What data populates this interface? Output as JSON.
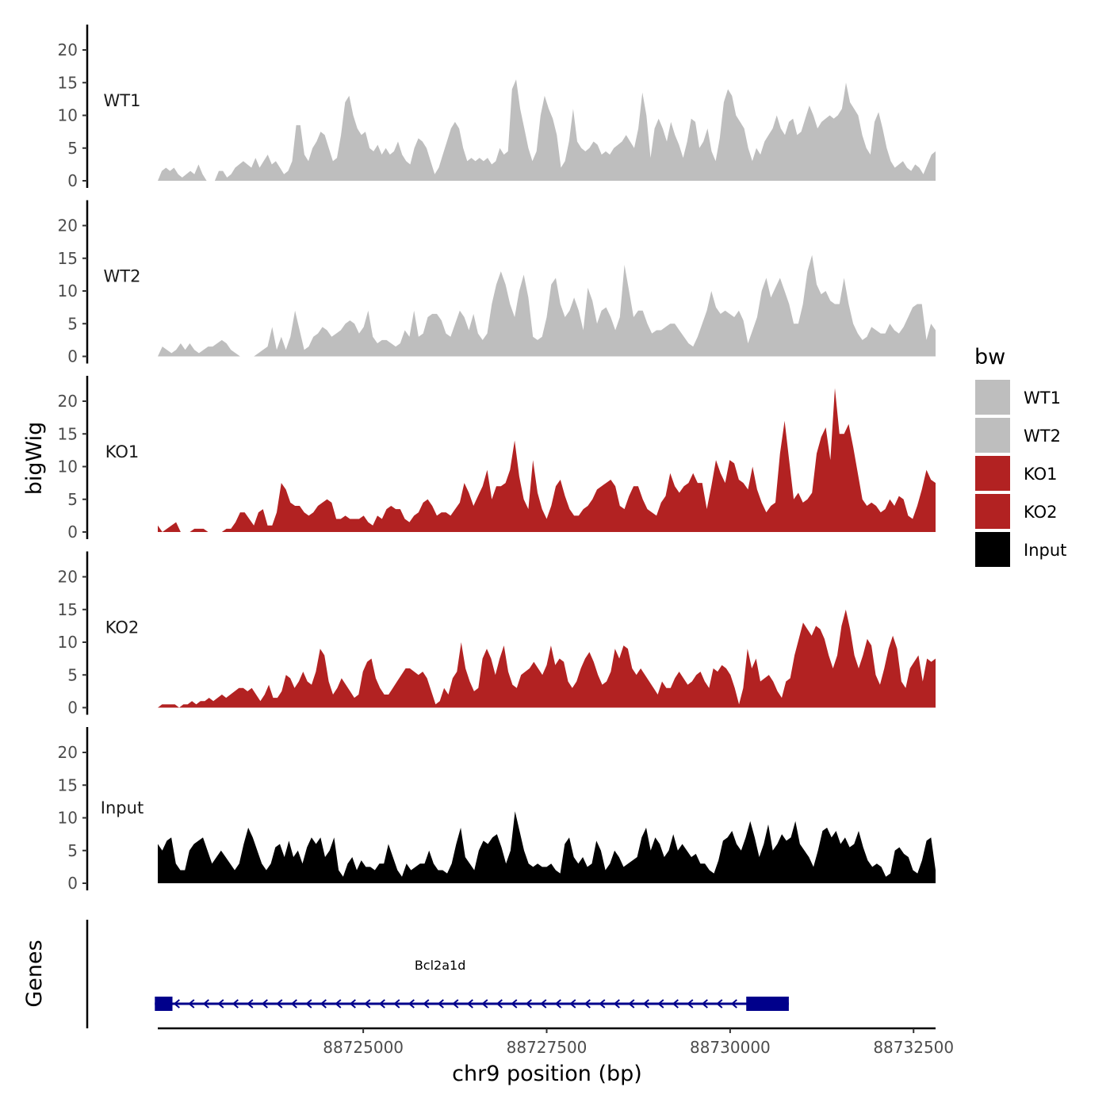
{
  "chart_data": {
    "type": "area",
    "ylabel": "bigWig",
    "xlabel": "chr9 position (bp)",
    "x_range": [
      88722200,
      88732800
    ],
    "ylim": [
      0,
      24
    ],
    "y_ticks": [
      0,
      5,
      10,
      15,
      20
    ],
    "y_tick_labels": [
      "0",
      "5",
      "10",
      "15",
      "20"
    ],
    "x_ticks": [
      88725000,
      88727500,
      88730000,
      88732500
    ],
    "x_tick_labels": [
      "88725000",
      "88727500",
      "88730000",
      "88732500"
    ],
    "legend": {
      "title": "bw",
      "position": "right",
      "entries": [
        {
          "label": "WT1",
          "color": "#bebebe"
        },
        {
          "label": "WT2",
          "color": "#bebebe"
        },
        {
          "label": "KO1",
          "color": "#b22222"
        },
        {
          "label": "KO2",
          "color": "#b22222"
        },
        {
          "label": "Input",
          "color": "#000000"
        }
      ]
    },
    "series": [
      {
        "name": "WT1",
        "color": "#bebebe",
        "x_start": 88722200,
        "x_end": 88732800,
        "values": [
          0,
          1.5,
          2,
          1.5,
          2,
          1,
          0.5,
          1,
          1.5,
          1,
          2.5,
          1,
          0,
          0,
          0,
          1.5,
          1.5,
          0.5,
          1,
          2,
          2.5,
          3,
          2.5,
          2,
          3.5,
          2,
          3,
          4,
          2.5,
          3,
          2,
          1,
          1.5,
          3,
          8.5,
          8.5,
          4,
          3,
          5,
          6,
          7.5,
          7,
          5,
          3,
          3.5,
          7,
          12,
          13,
          10,
          8,
          7,
          7.5,
          5,
          4.5,
          5.5,
          4,
          5,
          4,
          4.5,
          6,
          4,
          3,
          2.5,
          5,
          6.5,
          6,
          5,
          3,
          1,
          2,
          4,
          6,
          8,
          9,
          8,
          5,
          3,
          3.5,
          3,
          3.5,
          3,
          3.5,
          2.5,
          3,
          5,
          4,
          4.5,
          14,
          15.5,
          11,
          8,
          5,
          3,
          4.5,
          10,
          13,
          11,
          9.5,
          7,
          2,
          3,
          6,
          11,
          6,
          5,
          4.5,
          5,
          6,
          5.5,
          4,
          4.5,
          4,
          5,
          5.5,
          6,
          7,
          6,
          5,
          8,
          13.5,
          10,
          3.5,
          8,
          9.5,
          8,
          6,
          9,
          7,
          5.5,
          3.5,
          6,
          9.5,
          9,
          5,
          6,
          8,
          4.5,
          3,
          6.5,
          12,
          14,
          13,
          10,
          9,
          8,
          5,
          3,
          5,
          4,
          6,
          7,
          8,
          10,
          8,
          7,
          9,
          9.5,
          7,
          7.5,
          9.5,
          11.5,
          10,
          8,
          9,
          9.5,
          10,
          9.5,
          10,
          11,
          15,
          12,
          11,
          10,
          7,
          5,
          4,
          9,
          10.5,
          8,
          5,
          3,
          2,
          2.5,
          3,
          2,
          1.5,
          2.5,
          2,
          1,
          2.5,
          4,
          4.5
        ]
      },
      {
        "name": "WT2",
        "color": "#bebebe",
        "x_start": 88722200,
        "x_end": 88732800,
        "values": [
          0,
          1.5,
          1,
          0.5,
          1,
          2,
          1,
          2,
          1,
          0.5,
          1,
          1.5,
          1.5,
          2,
          2.5,
          2,
          1,
          0.5,
          0,
          0,
          0,
          0,
          0.5,
          1,
          1.5,
          4.5,
          1,
          3,
          1,
          3,
          7,
          4,
          1,
          1.5,
          3,
          3.5,
          4.5,
          4,
          3,
          3.5,
          4,
          5,
          5.5,
          5,
          3.5,
          4.5,
          7,
          3,
          2,
          2.5,
          2.5,
          2,
          1.5,
          2,
          4,
          3,
          7,
          3,
          3.5,
          6,
          6.5,
          6.5,
          5.5,
          3.5,
          3,
          5,
          7,
          6,
          4,
          6.5,
          3.5,
          2.5,
          3.5,
          8,
          11,
          13,
          11,
          8,
          6,
          10,
          12.5,
          9,
          3,
          2.5,
          3,
          6,
          11,
          12,
          8,
          6,
          7,
          9,
          7,
          4,
          10.5,
          8.5,
          5,
          7,
          7.5,
          6,
          4,
          6,
          14,
          10,
          6,
          7,
          7,
          5,
          3.5,
          4,
          4,
          4.5,
          5,
          5,
          4,
          3,
          2,
          1.5,
          3,
          5,
          7,
          10,
          7.5,
          6.5,
          7,
          6.5,
          6,
          7,
          5.5,
          2,
          4,
          6,
          10,
          12,
          9,
          10.5,
          12,
          10,
          8,
          5,
          5,
          8,
          13,
          15.5,
          11,
          9.5,
          10,
          8.5,
          8,
          8,
          12,
          8,
          5,
          3.5,
          2.5,
          3,
          4.5,
          4,
          3.5,
          3.5,
          5,
          4,
          3.5,
          4.5,
          6,
          7.5,
          8,
          8,
          2.5,
          5,
          4
        ]
      },
      {
        "name": "KO1",
        "color": "#b22222",
        "x_start": 88722200,
        "x_end": 88732800,
        "values": [
          1,
          0,
          0.5,
          1,
          1.5,
          0,
          0,
          0,
          0.5,
          0.5,
          0.5,
          0,
          0,
          0,
          0,
          0.5,
          0.5,
          1.5,
          3,
          3,
          2,
          1,
          3,
          3.5,
          1,
          1,
          3,
          7.5,
          6.5,
          4.5,
          4,
          4,
          3,
          2.5,
          3,
          4,
          4.5,
          5,
          4.5,
          2,
          2,
          2.5,
          2,
          2,
          2,
          2.5,
          1.5,
          1,
          2.5,
          2,
          3.5,
          4,
          3.5,
          3.5,
          2,
          1.5,
          2.5,
          3,
          4.5,
          5,
          4,
          2.5,
          3,
          3,
          2.5,
          3.5,
          4.5,
          7.5,
          6,
          4,
          5.5,
          7,
          9.5,
          5,
          7,
          7,
          7.5,
          9.5,
          14,
          8.5,
          5,
          3.5,
          11,
          6,
          3.5,
          2,
          4,
          7,
          8,
          5.5,
          3.5,
          2.5,
          2.5,
          3.5,
          4,
          5,
          6.5,
          7,
          7.5,
          8,
          7,
          4,
          3.5,
          5.5,
          7,
          7,
          5,
          3.5,
          3,
          2.5,
          4.5,
          5.5,
          9,
          7,
          6,
          7,
          7.5,
          9,
          7.5,
          7.5,
          3.5,
          7,
          11,
          9,
          7.5,
          11,
          10.5,
          8,
          7.5,
          6.5,
          10,
          6.5,
          4.5,
          3,
          4,
          4.5,
          12,
          17,
          11,
          5,
          6,
          4.5,
          5,
          6,
          12,
          14.5,
          16,
          11,
          22,
          15,
          15,
          16.5,
          13,
          9,
          5,
          4,
          4.5,
          4,
          3,
          3.5,
          5,
          4,
          5.5,
          5,
          2.5,
          2,
          4,
          6.5,
          9.5,
          8,
          7.5
        ]
      },
      {
        "name": "KO2",
        "color": "#b22222",
        "x_start": 88722200,
        "x_end": 88732800,
        "values": [
          0,
          0.5,
          0.5,
          0.5,
          0.5,
          0,
          0.5,
          0.5,
          1,
          0.5,
          1,
          1,
          1.5,
          1,
          1.5,
          2,
          1.5,
          2,
          2.5,
          3,
          3,
          2.5,
          3,
          2,
          1,
          2,
          3.5,
          1.5,
          1.5,
          2.5,
          5,
          4.5,
          3,
          4,
          5.5,
          4,
          3.5,
          5.5,
          9,
          8,
          4,
          2,
          3,
          4.5,
          3.5,
          2.5,
          1.5,
          2,
          5.5,
          7,
          7.5,
          4.5,
          3,
          2,
          2,
          3,
          4,
          5,
          6,
          6,
          5.5,
          5,
          5.5,
          4.5,
          2.5,
          0.5,
          1,
          3,
          2,
          4.5,
          5.5,
          10,
          6,
          4,
          2.5,
          3,
          7.5,
          9,
          7.5,
          5,
          7.5,
          9.5,
          5.5,
          3.5,
          3,
          5,
          5.5,
          6,
          7,
          6,
          5,
          6.5,
          9.5,
          6.5,
          7.5,
          7,
          4,
          3,
          4,
          6,
          7.5,
          8.5,
          7,
          5,
          3.5,
          4,
          5.5,
          9,
          7.5,
          9.5,
          9,
          6,
          5,
          6,
          5,
          4,
          3,
          2,
          4,
          3,
          3,
          4.5,
          5.5,
          4.5,
          3.5,
          4,
          5,
          5.5,
          4,
          3,
          6,
          5.5,
          6.5,
          6,
          5,
          3,
          0.5,
          3,
          9,
          6,
          7.5,
          4,
          4.5,
          5,
          4,
          2.5,
          1.5,
          4,
          4.5,
          8,
          10.5,
          13,
          12,
          11,
          12.5,
          12,
          10.5,
          8,
          6,
          8,
          12.5,
          15,
          12,
          8,
          6,
          8,
          10.5,
          9.5,
          5,
          3.5,
          6,
          9,
          11,
          9,
          4,
          3,
          6,
          7,
          8,
          4,
          7.5,
          7,
          7.5
        ]
      },
      {
        "name": "Input",
        "color": "#000000",
        "x_start": 88722200,
        "x_end": 88732800,
        "values": [
          6,
          5,
          6.5,
          7,
          3,
          2,
          2,
          5,
          6,
          6.5,
          7,
          5,
          3,
          4,
          5,
          4,
          3,
          2,
          3,
          6,
          8.5,
          7,
          5,
          3,
          2,
          3,
          5.5,
          6,
          4,
          6.5,
          4,
          5,
          3,
          5.5,
          7,
          6,
          7,
          4,
          5,
          7,
          2,
          1,
          3,
          4,
          2,
          3.5,
          2.5,
          2.5,
          2,
          3,
          3,
          6,
          4,
          2,
          1,
          3,
          2,
          2.5,
          3,
          3,
          5,
          3,
          2,
          2,
          1.5,
          3,
          6,
          8.5,
          4,
          3,
          2,
          5,
          6.5,
          6,
          7,
          7.5,
          5.5,
          3,
          5,
          11,
          8,
          5,
          3,
          2.5,
          3,
          2.5,
          2.5,
          3,
          2,
          1.5,
          6,
          7,
          4,
          3,
          4,
          2.5,
          3,
          6.5,
          5,
          2,
          3,
          5,
          4,
          2.5,
          3,
          3.5,
          4,
          7,
          8.5,
          5,
          7,
          6,
          4,
          5,
          7.5,
          5,
          6,
          5,
          4,
          4.5,
          3,
          3,
          2,
          1.5,
          3.5,
          6.5,
          7,
          8,
          6,
          5,
          7,
          9.5,
          7,
          4,
          6,
          9,
          5,
          6,
          7.5,
          6.5,
          7,
          9.5,
          6,
          5,
          4,
          2.5,
          5,
          8,
          8.5,
          7,
          8,
          6,
          7,
          5.5,
          6,
          8,
          5.5,
          3.5,
          2.5,
          3,
          2.5,
          1,
          1.5,
          5,
          5.5,
          4.5,
          4,
          2,
          1.5,
          3.5,
          6.5,
          7,
          2
        ]
      }
    ],
    "gene_track": {
      "label": "Genes",
      "gene_name": "Bcl2a1d",
      "strand": "-",
      "tx_start": 88722160,
      "tx_end": 88730800,
      "exons": [
        [
          88722160,
          88722400
        ],
        [
          88730220,
          88730800
        ]
      ],
      "color": "#00008b"
    }
  }
}
